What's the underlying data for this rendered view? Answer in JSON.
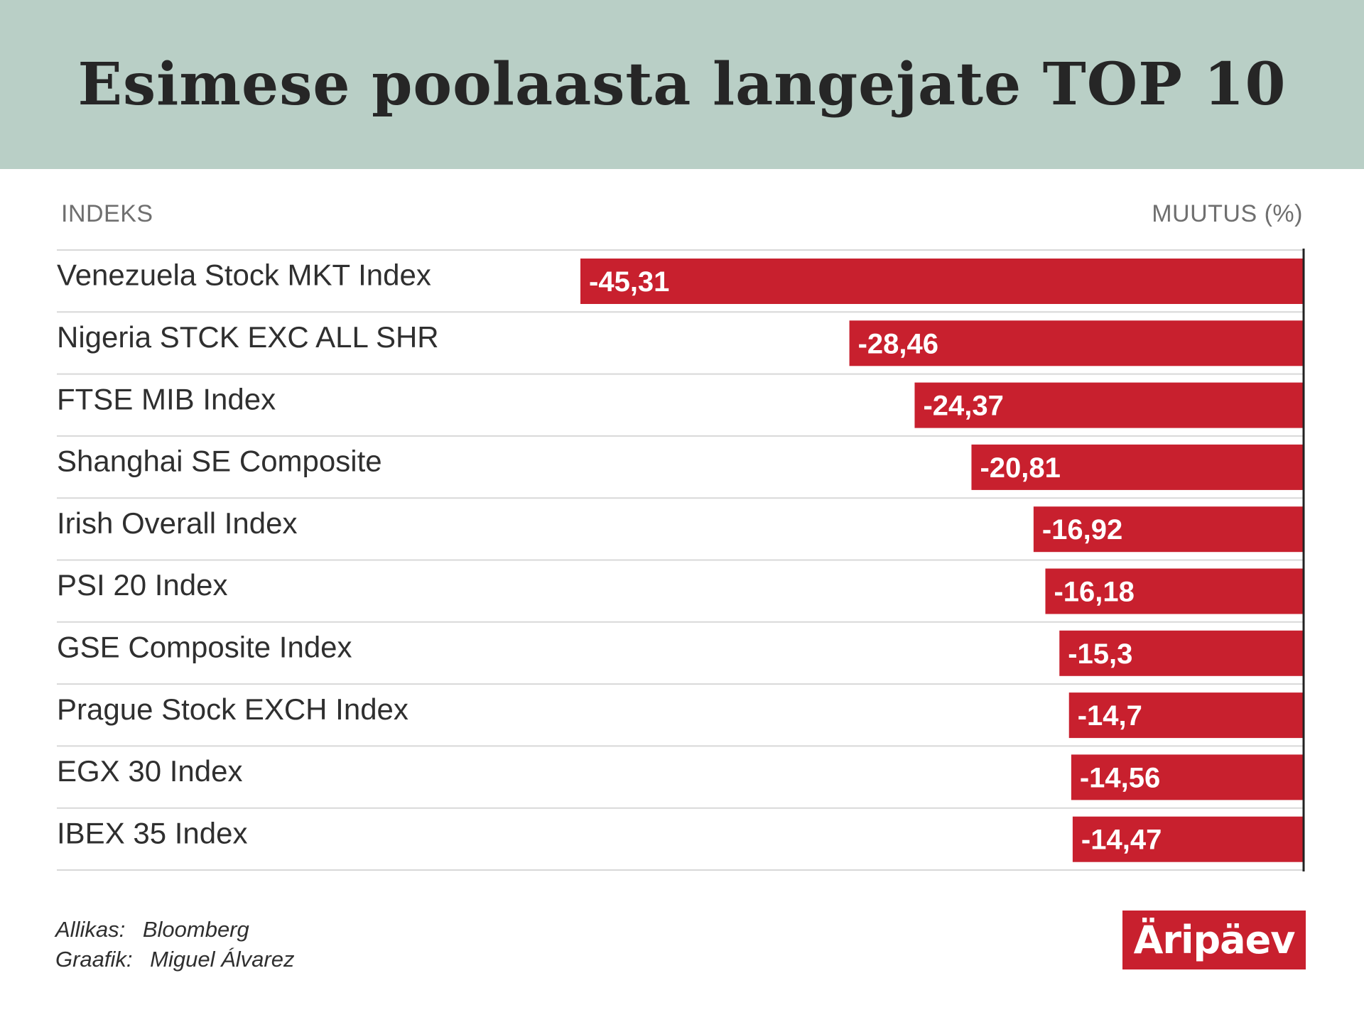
{
  "header": {
    "title": "Esimese poolaasta langejate TOP 10"
  },
  "columns": {
    "left": "INDEKS",
    "right": "MUUTUS (%)"
  },
  "chart_data": {
    "type": "bar",
    "orientation": "horizontal",
    "title": "Esimese poolaasta langejate TOP 10",
    "xlabel": "MUUTUS (%)",
    "ylabel": "INDEKS",
    "categories": [
      "Venezuela Stock MKT Index",
      "Nigeria STCK EXC ALL SHR",
      "FTSE MIB Index",
      "Shanghai SE Composite",
      "Irish Overall Index",
      "PSI 20 Index",
      "GSE Composite Index",
      "Prague Stock EXCH Index",
      "EGX 30 Index",
      "IBEX 35 Index"
    ],
    "values": [
      -45.31,
      -28.46,
      -24.37,
      -20.81,
      -16.92,
      -16.18,
      -15.3,
      -14.7,
      -14.56,
      -14.47
    ],
    "value_labels": [
      "-45,31",
      "-28,46",
      "-24,37",
      "-20,81",
      "-16,92",
      "-16,18",
      "-15,3",
      "-14,7",
      "-14,56",
      "-14,47"
    ],
    "xlim": [
      -45.31,
      0
    ],
    "grid": false,
    "bar_color": "#c8202e"
  },
  "footer": {
    "source_label": "Allikas:",
    "source_value": "Bloomberg",
    "graphic_label": "Graafik:",
    "graphic_value": "Miguel Álvarez"
  },
  "logo": {
    "text": "Äripäev"
  },
  "colors": {
    "title_band": "#b9cfc6",
    "bar": "#c8202e",
    "divider": "#d8d8d8",
    "axis": "#222222"
  }
}
